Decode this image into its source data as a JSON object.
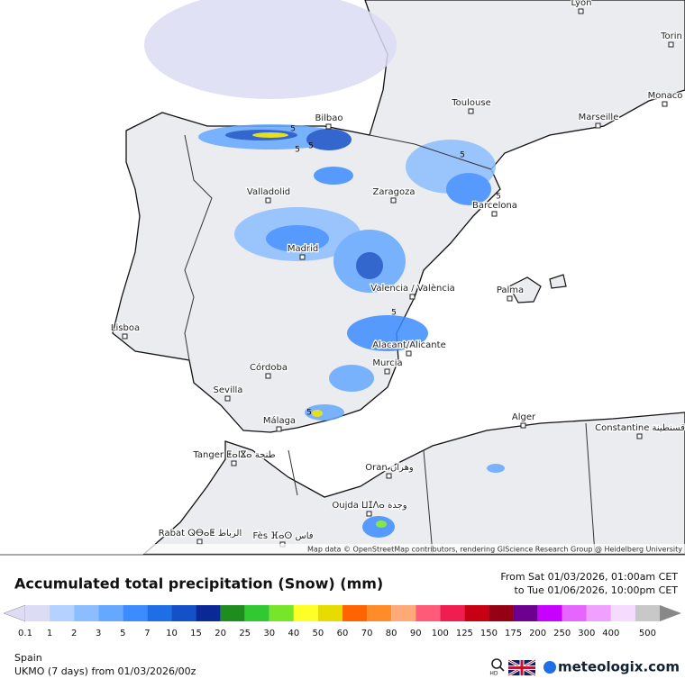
{
  "map": {
    "cities": [
      "Lyon",
      "Torin",
      "Monaco",
      "Toulouse",
      "Marseille",
      "Bilbao",
      "Zaragoza",
      "Valladolid",
      "Barcelona",
      "Madrid",
      "Valencia / València",
      "Palma",
      "Lisboa",
      "Córdoba",
      "Sevilla",
      "Alacant/Alicante",
      "Murcia",
      "Málaga",
      "Alger",
      "Constantine قسنطينة",
      "Tanger ⵟⴰⵏⴵⴰ طنجة",
      "Oran وهران",
      "Oujda ⵡⵊⴷⴰ وجدة",
      "Rabat ⵕⴱⴰⵟ الرباط",
      "Fès ⴼⴰⵙ فاس"
    ],
    "contour_labels": [
      "5",
      "5",
      "5",
      "5",
      "5",
      "5",
      "5"
    ],
    "attribution": "Map data © OpenStreetMap contributors, rendering GIScience Research Group @ Heidelberg University"
  },
  "legend": {
    "title": "Accumulated total precipitation (Snow) (mm)",
    "period_from": "From Sat 01/03/2026, 01:00am CET",
    "period_to": "to Tue 01/06/2026, 10:00pm CET",
    "labels": [
      0.1,
      1,
      2,
      3,
      5,
      7,
      10,
      15,
      20,
      25,
      30,
      40,
      50,
      60,
      70,
      80,
      90,
      100,
      125,
      150,
      175,
      200,
      250,
      300,
      400,
      500
    ],
    "colors": [
      "#dcdcf5",
      "#b4d2ff",
      "#8cbeff",
      "#64a8ff",
      "#3c8cff",
      "#1e6ee6",
      "#1450c8",
      "#0a2896",
      "#1e8c1e",
      "#32c832",
      "#78e628",
      "#ffff28",
      "#e6dc00",
      "#ff6400",
      "#ff8c28",
      "#ffaa78",
      "#ff5a78",
      "#f01e50",
      "#c80014",
      "#960014",
      "#6e0090",
      "#c800ff",
      "#e664ff",
      "#f0a0ff",
      "#f5dcff",
      "#c8c8c8"
    ]
  },
  "footer": {
    "region": "Spain",
    "model": "UKMO (7 days) from 01/03/2026/00z",
    "hd": "HD",
    "brand": "meteologix.com"
  }
}
